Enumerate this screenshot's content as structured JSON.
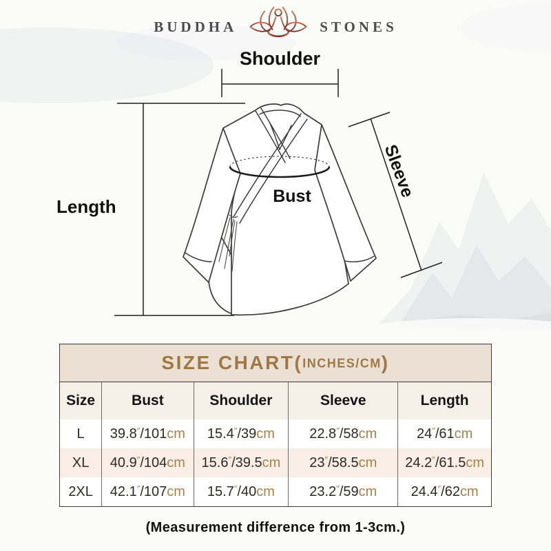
{
  "brand": {
    "left": "BUDDHA",
    "right": "STONES"
  },
  "diagram": {
    "shoulder_label": "Shoulder",
    "length_label": "Length",
    "bust_label": "Bust",
    "sleeve_label": "Sleeve"
  },
  "size_chart": {
    "title_main": "SIZE CHART(",
    "title_units": "INCHES/CM",
    "title_close": ")",
    "columns": [
      "Size",
      "Bust",
      "Shoulder",
      "Sleeve",
      "Length"
    ],
    "unit_inch_mark": "″",
    "unit_cm": "cm",
    "rows": [
      {
        "size": "L",
        "cells": [
          {
            "in": "39.8",
            "cm": "101"
          },
          {
            "in": "15.4",
            "cm": "39"
          },
          {
            "in": "22.8",
            "cm": "58"
          },
          {
            "in": "24",
            "cm": "61"
          }
        ]
      },
      {
        "size": "XL",
        "cells": [
          {
            "in": "40.9",
            "cm": "104"
          },
          {
            "in": "15.6",
            "cm": "39.5"
          },
          {
            "in": "23",
            "cm": "58.5"
          },
          {
            "in": "24.2",
            "cm": "61.5"
          }
        ]
      },
      {
        "size": "2XL",
        "cells": [
          {
            "in": "42.1",
            "cm": "107"
          },
          {
            "in": "15.7",
            "cm": "40"
          },
          {
            "in": "23.2",
            "cm": "59"
          },
          {
            "in": "24.4",
            "cm": "62"
          }
        ]
      }
    ]
  },
  "note": "(Measurement difference from 1-3cm.)",
  "colors": {
    "gold": "#9d7a45",
    "cm_text": "#a6824e",
    "title_band_bg": "#ecdfd4",
    "header_row_bg": "#f6efe8",
    "alt_row_bg": "#f8eee5",
    "logo_text": "#4c4c4e",
    "lotus_dark": "#7c2e27",
    "lotus_light": "#c97250"
  }
}
